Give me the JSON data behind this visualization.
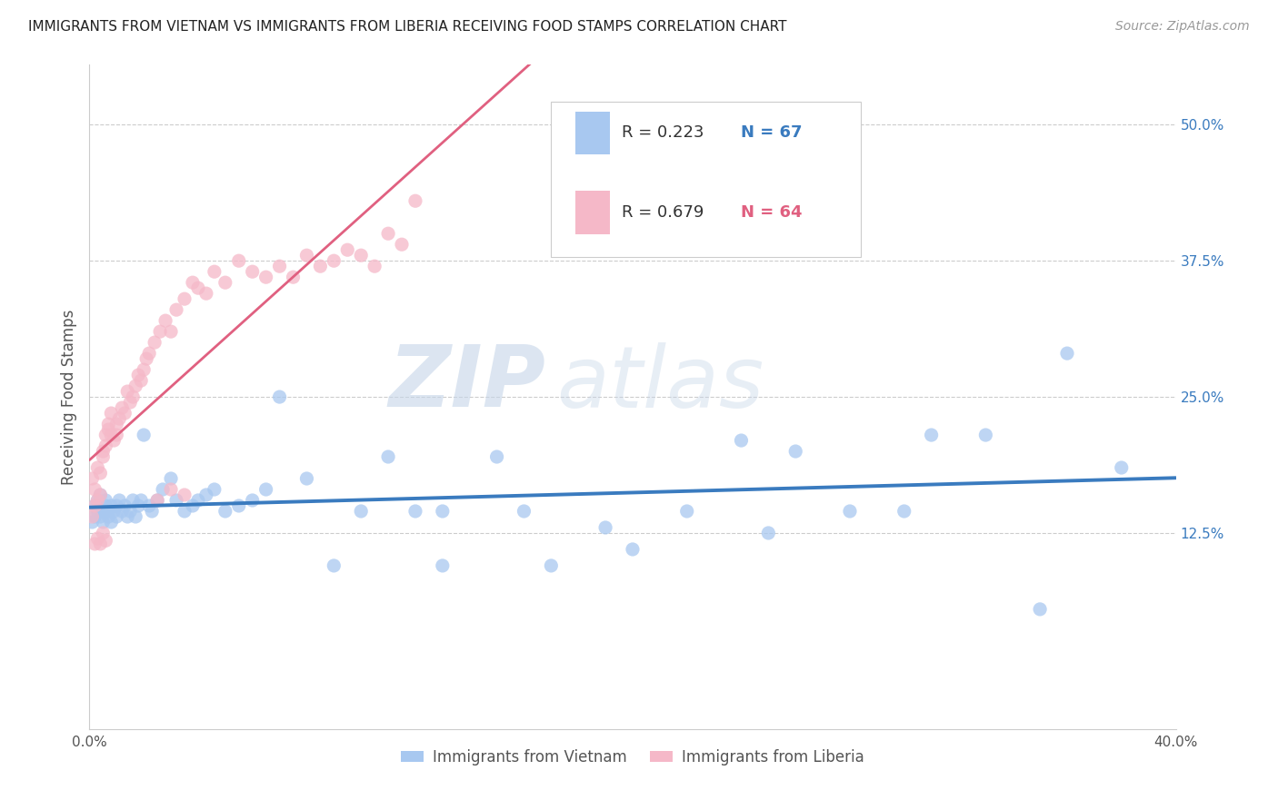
{
  "title": "IMMIGRANTS FROM VIETNAM VS IMMIGRANTS FROM LIBERIA RECEIVING FOOD STAMPS CORRELATION CHART",
  "source": "Source: ZipAtlas.com",
  "ylabel": "Receiving Food Stamps",
  "ytick_labels": [
    "50.0%",
    "37.5%",
    "25.0%",
    "12.5%"
  ],
  "ytick_values": [
    0.5,
    0.375,
    0.25,
    0.125
  ],
  "xmin": 0.0,
  "xmax": 0.4,
  "ymin": -0.055,
  "ymax": 0.555,
  "vietnam_color": "#a8c8f0",
  "liberia_color": "#f5b8c8",
  "vietnam_line_color": "#3a7bbf",
  "liberia_line_color": "#e06080",
  "legend_bottom_vietnam": "Immigrants from Vietnam",
  "legend_bottom_liberia": "Immigrants from Liberia",
  "watermark_zip": "ZIP",
  "watermark_atlas": "atlas",
  "background_color": "#ffffff",
  "grid_color": "#cccccc",
  "vietnam_scatter_x": [
    0.001,
    0.002,
    0.002,
    0.003,
    0.003,
    0.004,
    0.004,
    0.005,
    0.005,
    0.006,
    0.006,
    0.007,
    0.007,
    0.008,
    0.008,
    0.009,
    0.01,
    0.01,
    0.011,
    0.012,
    0.013,
    0.014,
    0.015,
    0.016,
    0.017,
    0.018,
    0.019,
    0.02,
    0.022,
    0.023,
    0.025,
    0.027,
    0.03,
    0.032,
    0.035,
    0.038,
    0.04,
    0.043,
    0.046,
    0.05,
    0.055,
    0.06,
    0.065,
    0.07,
    0.08,
    0.09,
    0.1,
    0.11,
    0.12,
    0.13,
    0.15,
    0.16,
    0.17,
    0.19,
    0.2,
    0.22,
    0.24,
    0.26,
    0.28,
    0.31,
    0.33,
    0.36,
    0.25,
    0.3,
    0.35,
    0.38,
    0.13
  ],
  "vietnam_scatter_y": [
    0.135,
    0.14,
    0.15,
    0.145,
    0.155,
    0.14,
    0.16,
    0.145,
    0.135,
    0.15,
    0.155,
    0.14,
    0.145,
    0.135,
    0.15,
    0.145,
    0.15,
    0.14,
    0.155,
    0.145,
    0.15,
    0.14,
    0.145,
    0.155,
    0.14,
    0.15,
    0.155,
    0.215,
    0.15,
    0.145,
    0.155,
    0.165,
    0.175,
    0.155,
    0.145,
    0.15,
    0.155,
    0.16,
    0.165,
    0.145,
    0.15,
    0.155,
    0.165,
    0.25,
    0.175,
    0.095,
    0.145,
    0.195,
    0.145,
    0.095,
    0.195,
    0.145,
    0.095,
    0.13,
    0.11,
    0.145,
    0.21,
    0.2,
    0.145,
    0.215,
    0.215,
    0.29,
    0.125,
    0.145,
    0.055,
    0.185,
    0.145
  ],
  "liberia_scatter_x": [
    0.001,
    0.001,
    0.002,
    0.002,
    0.003,
    0.003,
    0.004,
    0.004,
    0.005,
    0.005,
    0.006,
    0.006,
    0.007,
    0.007,
    0.008,
    0.008,
    0.009,
    0.01,
    0.01,
    0.011,
    0.012,
    0.013,
    0.014,
    0.015,
    0.016,
    0.017,
    0.018,
    0.019,
    0.02,
    0.021,
    0.022,
    0.024,
    0.026,
    0.028,
    0.03,
    0.032,
    0.035,
    0.038,
    0.04,
    0.043,
    0.046,
    0.05,
    0.055,
    0.06,
    0.065,
    0.07,
    0.075,
    0.08,
    0.085,
    0.09,
    0.095,
    0.1,
    0.105,
    0.11,
    0.115,
    0.12,
    0.025,
    0.03,
    0.035,
    0.002,
    0.003,
    0.004,
    0.005,
    0.006
  ],
  "liberia_scatter_y": [
    0.14,
    0.175,
    0.15,
    0.165,
    0.155,
    0.185,
    0.16,
    0.18,
    0.2,
    0.195,
    0.215,
    0.205,
    0.22,
    0.225,
    0.215,
    0.235,
    0.21,
    0.225,
    0.215,
    0.23,
    0.24,
    0.235,
    0.255,
    0.245,
    0.25,
    0.26,
    0.27,
    0.265,
    0.275,
    0.285,
    0.29,
    0.3,
    0.31,
    0.32,
    0.31,
    0.33,
    0.34,
    0.355,
    0.35,
    0.345,
    0.365,
    0.355,
    0.375,
    0.365,
    0.36,
    0.37,
    0.36,
    0.38,
    0.37,
    0.375,
    0.385,
    0.38,
    0.37,
    0.4,
    0.39,
    0.43,
    0.155,
    0.165,
    0.16,
    0.115,
    0.12,
    0.115,
    0.125,
    0.118
  ]
}
